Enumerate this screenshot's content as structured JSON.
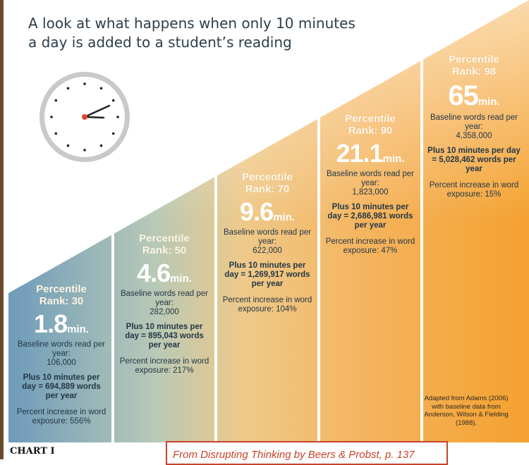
{
  "title": "A look at what happens when only 10 minutes a day is added to a student’s reading",
  "chart_data": {
    "type": "bar",
    "categories": [
      "Percentile Rank: 30",
      "Percentile Rank: 50",
      "Percentile Rank: 70",
      "Percentile Rank: 90",
      "Percentile Rank: 98"
    ],
    "columns": [
      {
        "rank_label": "Percentile Rank: 30",
        "minutes": "1.8",
        "unit": "min.",
        "baseline_label": "Baseline words read per year:",
        "baseline_value": "106,000",
        "plus_label": "Plus 10 minutes per day = 694,889 words per year",
        "pct_label": "Percent increase in word exposure: 556%"
      },
      {
        "rank_label": "Percentile Rank: 50",
        "minutes": "4.6",
        "unit": "min.",
        "baseline_label": "Baseline words read per year:",
        "baseline_value": "282,000",
        "plus_label": "Plus 10 minutes per day = 895,043 words per year",
        "pct_label": "Percent increase in word exposure: 217%"
      },
      {
        "rank_label": "Percentile Rank: 70",
        "minutes": "9.6",
        "unit": "min.",
        "baseline_label": "Baseline words read per year:",
        "baseline_value": "622,000",
        "plus_label": "Plus 10 minutes per day = 1,269,917 words per year",
        "pct_label": "Percent increase in word exposure: 104%"
      },
      {
        "rank_label": "Percentile Rank: 90",
        "minutes": "21.1",
        "unit": "min.",
        "baseline_label": "Baseline words read per year:",
        "baseline_value": "1,823,000",
        "plus_label": "Plus 10 minutes per day = 2,686,981 words per year",
        "pct_label": "Percent increase in word exposure: 47%"
      },
      {
        "rank_label": "Percentile Rank: 98",
        "minutes": "65",
        "unit": "min.",
        "baseline_label": "Baseline words read per year:",
        "baseline_value": "4,358,000",
        "plus_label": "Plus 10 minutes per day = 5,028,462 words per year",
        "pct_label": "Percent increase in word exposure: 15%"
      }
    ]
  },
  "attribution": "Adapted from Adams (2006) with baseline data from Anderson, Wilson & Fielding (1988).",
  "chart_label": "CHART I",
  "source": "From Disrupting Thinking by Beers & Probst, p. 137",
  "colors": {
    "blue": "#6a9ab8",
    "orange": "#f3a43c",
    "source_red": "#c7422b"
  },
  "icons": [
    "clock-icon"
  ]
}
